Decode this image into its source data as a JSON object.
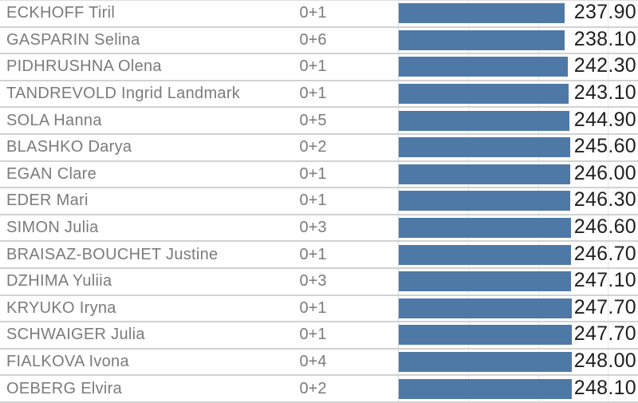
{
  "chart_data": {
    "type": "bar",
    "orientation": "horizontal",
    "title": "",
    "xlabel": "",
    "ylabel": "",
    "xlim": [
      0,
      343
    ],
    "gridlines": [
      100,
      200,
      300
    ],
    "grid": true,
    "legend": "none",
    "bar_color": "#4e79a7",
    "columns": [
      "athlete",
      "shooting",
      "time"
    ],
    "rows": [
      {
        "name": "ECKHOFF Tiril",
        "shooting": "0+1",
        "time": 237.9,
        "time_label": "237.90"
      },
      {
        "name": "GASPARIN Selina",
        "shooting": "0+6",
        "time": 238.1,
        "time_label": "238.10"
      },
      {
        "name": "PIDHRUSHNA Olena",
        "shooting": "0+1",
        "time": 242.3,
        "time_label": "242.30"
      },
      {
        "name": "TANDREVOLD Ingrid Landmark",
        "shooting": "0+1",
        "time": 243.1,
        "time_label": "243.10"
      },
      {
        "name": "SOLA Hanna",
        "shooting": "0+5",
        "time": 244.9,
        "time_label": "244.90"
      },
      {
        "name": "BLASHKO Darya",
        "shooting": "0+2",
        "time": 245.6,
        "time_label": "245.60"
      },
      {
        "name": "EGAN Clare",
        "shooting": "0+1",
        "time": 246.0,
        "time_label": "246.00"
      },
      {
        "name": "EDER Mari",
        "shooting": "0+1",
        "time": 246.3,
        "time_label": "246.30"
      },
      {
        "name": "SIMON Julia",
        "shooting": "0+3",
        "time": 246.6,
        "time_label": "246.60"
      },
      {
        "name": "BRAISAZ-BOUCHET Justine",
        "shooting": "0+1",
        "time": 246.7,
        "time_label": "246.70"
      },
      {
        "name": "DZHIMA Yuliia",
        "shooting": "0+3",
        "time": 247.1,
        "time_label": "247.10"
      },
      {
        "name": "KRYUKO Iryna",
        "shooting": "0+1",
        "time": 247.7,
        "time_label": "247.70"
      },
      {
        "name": "SCHWAIGER Julia",
        "shooting": "0+1",
        "time": 247.7,
        "time_label": "247.70"
      },
      {
        "name": "FIALKOVA Ivona",
        "shooting": "0+4",
        "time": 248.0,
        "time_label": "248.00"
      },
      {
        "name": "OEBERG Elvira",
        "shooting": "0+2",
        "time": 248.1,
        "time_label": "248.10"
      }
    ],
    "colors": {
      "bar": "#4e79a7",
      "row_separator": "#d2d2d2",
      "gridline": "#e7e7e7",
      "axis_line": "#d7d7d7",
      "name_text": "#7b7b7b",
      "value_text": "#1f1f1f",
      "background": "#ffffff"
    }
  }
}
